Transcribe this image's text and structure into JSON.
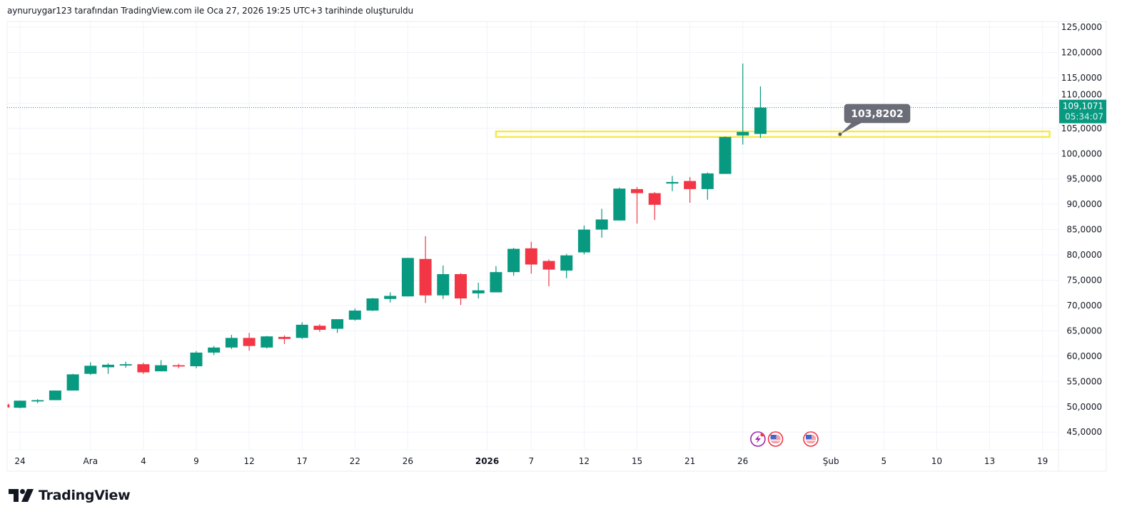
{
  "caption": "aynuruygar123 tarafından TradingView.com ile Oca 27, 2026 19:25 UTC+3 tarihinde oluşturuldu",
  "brand": {
    "name": "TradingView",
    "logo_icon": "tradingview-logo-icon"
  },
  "colors": {
    "up": "#089981",
    "down": "#f23645",
    "grid": "#f0f3fa",
    "highlight_band": "#f7e94a",
    "callout_bg": "#6a6d78",
    "last_price_bg": "#089981"
  },
  "chart_data": {
    "type": "candlestick",
    "title": "",
    "xlabel": "",
    "ylabel": "",
    "ylim": [
      42,
      126
    ],
    "grid": true,
    "y_ticks": [
      "125,0000",
      "120,0000",
      "115,0000",
      "110,0000",
      "105,0000",
      "100,0000",
      "95,0000",
      "90,0000",
      "85,0000",
      "80,0000",
      "75,0000",
      "70,0000",
      "65,0000",
      "60,0000",
      "55,0000",
      "50,0000",
      "45,0000"
    ],
    "y_tick_values": [
      125,
      120,
      115,
      110,
      105,
      100,
      95,
      90,
      85,
      80,
      75,
      70,
      65,
      60,
      55,
      50,
      45
    ],
    "x_ticks": [
      {
        "label": "24",
        "index": 0
      },
      {
        "label": "Ara",
        "index": 4
      },
      {
        "label": "4",
        "index": 7
      },
      {
        "label": "9",
        "index": 10
      },
      {
        "label": "12",
        "index": 13
      },
      {
        "label": "17",
        "index": 16
      },
      {
        "label": "22",
        "index": 19
      },
      {
        "label": "26",
        "index": 22
      },
      {
        "label": "2026",
        "index": 26.5,
        "bold": true
      },
      {
        "label": "7",
        "index": 29
      },
      {
        "label": "12",
        "index": 32
      },
      {
        "label": "15",
        "index": 35
      },
      {
        "label": "21",
        "index": 38
      },
      {
        "label": "26",
        "index": 41
      },
      {
        "label": "Şub",
        "index": 46
      },
      {
        "label": "5",
        "index": 49
      },
      {
        "label": "10",
        "index": 52
      },
      {
        "label": "13",
        "index": 55
      },
      {
        "label": "19",
        "index": 58
      }
    ],
    "candles": [
      {
        "i": -0.65,
        "o": 50.4,
        "h": 50.6,
        "l": 49.8,
        "c": 49.9
      },
      {
        "i": 0,
        "o": 49.8,
        "h": 51.2,
        "l": 49.7,
        "c": 51.2
      },
      {
        "i": 1,
        "o": 51.2,
        "h": 51.5,
        "l": 50.7,
        "c": 51.3
      },
      {
        "i": 2,
        "o": 51.3,
        "h": 53.2,
        "l": 51.3,
        "c": 53.2
      },
      {
        "i": 3,
        "o": 53.2,
        "h": 56.5,
        "l": 53.2,
        "c": 56.4
      },
      {
        "i": 4,
        "o": 56.5,
        "h": 58.8,
        "l": 56.3,
        "c": 58.1
      },
      {
        "i": 5,
        "o": 57.8,
        "h": 58.6,
        "l": 56.5,
        "c": 58.3
      },
      {
        "i": 6,
        "o": 58.3,
        "h": 58.9,
        "l": 57.7,
        "c": 58.4
      },
      {
        "i": 7,
        "o": 58.4,
        "h": 58.7,
        "l": 56.5,
        "c": 56.8
      },
      {
        "i": 8,
        "o": 57.0,
        "h": 59.2,
        "l": 57.0,
        "c": 58.2
      },
      {
        "i": 9,
        "o": 58.2,
        "h": 58.5,
        "l": 57.6,
        "c": 58.0
      },
      {
        "i": 10,
        "o": 58.0,
        "h": 61.0,
        "l": 57.6,
        "c": 60.7
      },
      {
        "i": 11,
        "o": 60.7,
        "h": 62.0,
        "l": 60.2,
        "c": 61.7
      },
      {
        "i": 12,
        "o": 61.7,
        "h": 64.2,
        "l": 61.4,
        "c": 63.6
      },
      {
        "i": 13,
        "o": 63.6,
        "h": 64.6,
        "l": 61.1,
        "c": 62.0
      },
      {
        "i": 14,
        "o": 61.7,
        "h": 64.0,
        "l": 61.5,
        "c": 63.9
      },
      {
        "i": 15,
        "o": 63.8,
        "h": 64.1,
        "l": 62.4,
        "c": 63.4
      },
      {
        "i": 16,
        "o": 63.6,
        "h": 66.7,
        "l": 63.4,
        "c": 66.2
      },
      {
        "i": 17,
        "o": 66.0,
        "h": 66.3,
        "l": 64.8,
        "c": 65.2
      },
      {
        "i": 18,
        "o": 65.4,
        "h": 67.3,
        "l": 64.6,
        "c": 67.3
      },
      {
        "i": 19,
        "o": 67.2,
        "h": 69.4,
        "l": 67.0,
        "c": 69.0
      },
      {
        "i": 20,
        "o": 69.0,
        "h": 71.5,
        "l": 68.9,
        "c": 71.4
      },
      {
        "i": 21,
        "o": 71.3,
        "h": 72.6,
        "l": 70.6,
        "c": 71.9
      },
      {
        "i": 22,
        "o": 71.8,
        "h": 79.4,
        "l": 71.8,
        "c": 79.4
      },
      {
        "i": 23,
        "o": 79.2,
        "h": 83.7,
        "l": 70.5,
        "c": 72.0
      },
      {
        "i": 24,
        "o": 72.0,
        "h": 77.9,
        "l": 71.3,
        "c": 76.2
      },
      {
        "i": 25,
        "o": 76.2,
        "h": 76.4,
        "l": 70.1,
        "c": 71.4
      },
      {
        "i": 26,
        "o": 72.4,
        "h": 74.5,
        "l": 71.4,
        "c": 73.0
      },
      {
        "i": 27,
        "o": 72.6,
        "h": 77.8,
        "l": 72.6,
        "c": 76.6
      },
      {
        "i": 28,
        "o": 76.6,
        "h": 81.4,
        "l": 75.9,
        "c": 81.2
      },
      {
        "i": 29,
        "o": 81.3,
        "h": 82.6,
        "l": 76.3,
        "c": 78.1
      },
      {
        "i": 30,
        "o": 78.8,
        "h": 79.1,
        "l": 73.8,
        "c": 77.1
      },
      {
        "i": 31,
        "o": 76.9,
        "h": 80.2,
        "l": 75.4,
        "c": 79.9
      },
      {
        "i": 32,
        "o": 80.5,
        "h": 85.8,
        "l": 80.1,
        "c": 85.0
      },
      {
        "i": 33,
        "o": 85.0,
        "h": 89.1,
        "l": 83.4,
        "c": 87.0
      },
      {
        "i": 34,
        "o": 86.8,
        "h": 93.3,
        "l": 86.8,
        "c": 93.1
      },
      {
        "i": 35,
        "o": 93.0,
        "h": 93.4,
        "l": 86.2,
        "c": 92.2
      },
      {
        "i": 36,
        "o": 92.2,
        "h": 92.4,
        "l": 86.9,
        "c": 89.9
      },
      {
        "i": 37,
        "o": 94.1,
        "h": 95.6,
        "l": 92.6,
        "c": 94.4
      },
      {
        "i": 38,
        "o": 94.6,
        "h": 95.4,
        "l": 90.3,
        "c": 93.0
      },
      {
        "i": 39,
        "o": 93.0,
        "h": 96.3,
        "l": 90.9,
        "c": 96.1
      },
      {
        "i": 40,
        "o": 96.0,
        "h": 103.4,
        "l": 96.0,
        "c": 103.3
      },
      {
        "i": 41,
        "o": 103.6,
        "h": 117.8,
        "l": 101.8,
        "c": 104.3
      },
      {
        "i": 42,
        "o": 103.9,
        "h": 113.3,
        "l": 103.1,
        "c": 109.1071
      }
    ],
    "horizontal_band": {
      "price_low": 103.3,
      "price_high": 104.4,
      "start_index": 27,
      "end_index": 58.4
    },
    "callout": {
      "label": "103,8202",
      "price": 103.8202,
      "anchor_index": 47
    },
    "last_price": {
      "label": "109,1071",
      "countdown": "05:34:07",
      "price": 109.1071
    },
    "event_markers": [
      {
        "type": "lightning",
        "icon": "lightning-event-icon",
        "color": "#9c27b0",
        "index": 42.1
      },
      {
        "type": "us-flag",
        "icon": "us-flag-event-icon",
        "color": "#f23645",
        "index": 43.1
      },
      {
        "type": "us-flag",
        "icon": "us-flag-event-icon",
        "color": "#f23645",
        "index": 45.1
      }
    ]
  }
}
